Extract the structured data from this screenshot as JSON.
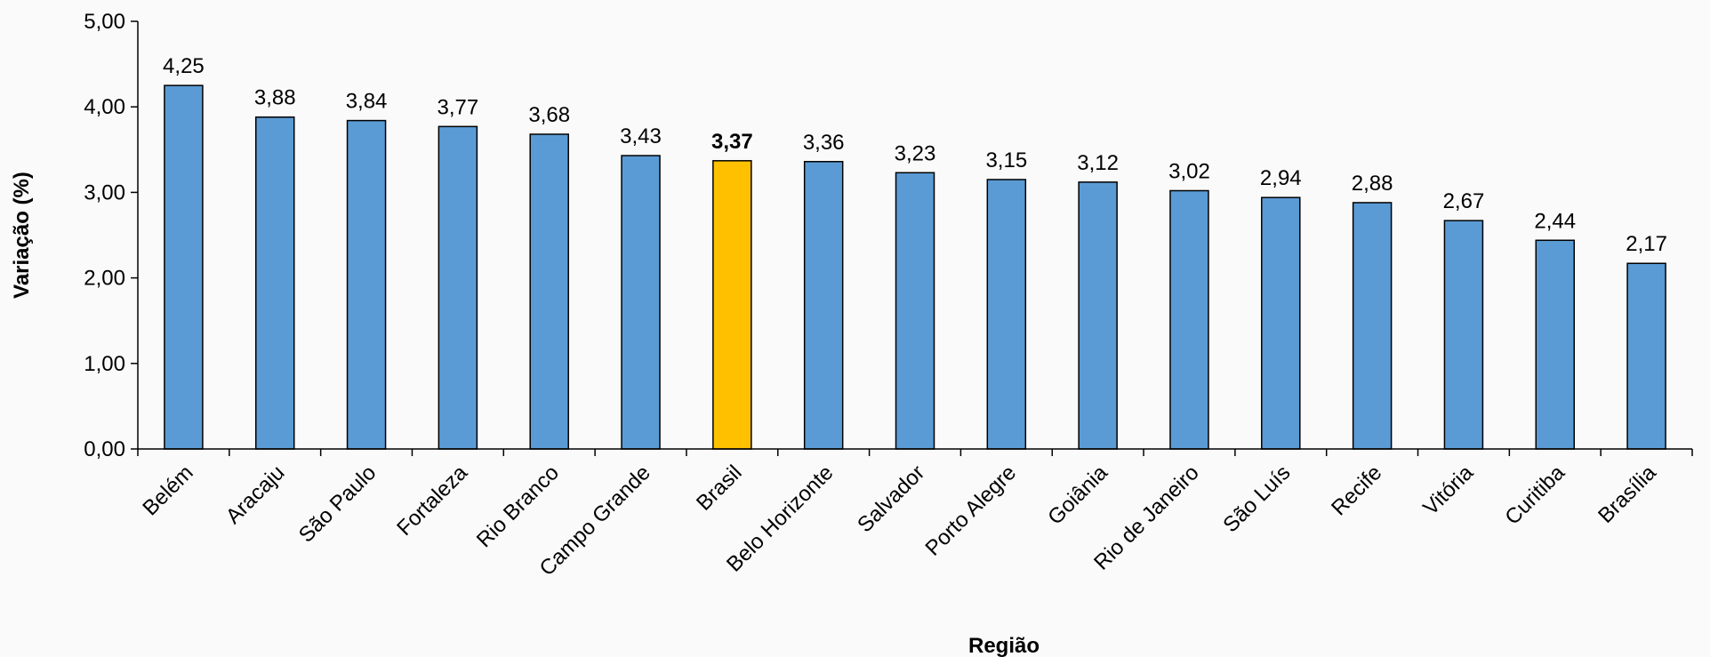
{
  "chart_data": {
    "type": "bar",
    "title": "",
    "xlabel": "Região",
    "ylabel": "Variação (%)",
    "ylim": [
      0,
      5
    ],
    "yticks": [
      "0,00",
      "1,00",
      "2,00",
      "3,00",
      "4,00",
      "5,00"
    ],
    "grid": false,
    "categories": [
      "Belém",
      "Aracaju",
      "São Paulo",
      "Fortaleza",
      "Rio Branco",
      "Campo Grande",
      "Brasil",
      "Belo Horizonte",
      "Salvador",
      "Porto Alegre",
      "Goiânia",
      "Rio de Janeiro",
      "São Luís",
      "Recife",
      "Vitória",
      "Curitiba",
      "Brasília"
    ],
    "values": [
      4.25,
      3.88,
      3.84,
      3.77,
      3.68,
      3.43,
      3.37,
      3.36,
      3.23,
      3.15,
      3.12,
      3.02,
      2.94,
      2.88,
      2.67,
      2.44,
      2.17
    ],
    "value_labels": [
      "4,25",
      "3,88",
      "3,84",
      "3,77",
      "3,68",
      "3,43",
      "3,37",
      "3,36",
      "3,23",
      "3,15",
      "3,12",
      "3,02",
      "2,94",
      "2,88",
      "2,67",
      "2,44",
      "2,17"
    ],
    "highlight_category": "Brasil",
    "colors": {
      "bar": "#5b9bd5",
      "highlight": "#ffc000"
    }
  }
}
